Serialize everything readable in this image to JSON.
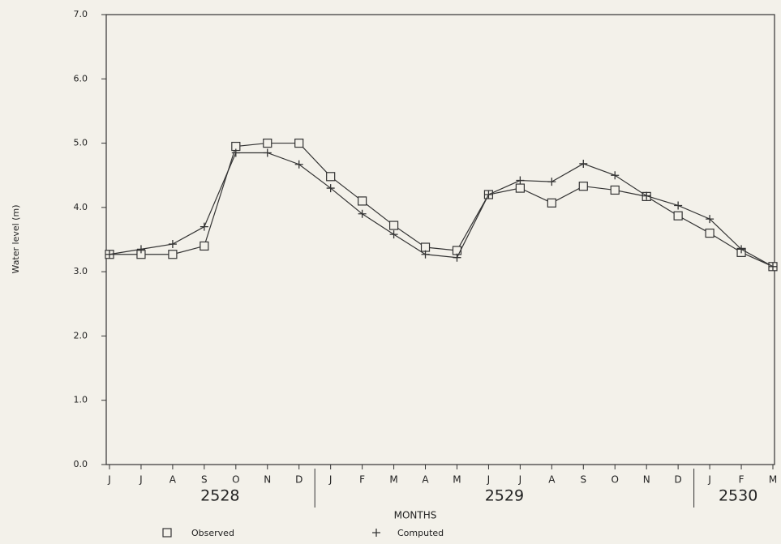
{
  "chart_data": {
    "type": "line",
    "y_label": "Water level (m)",
    "x_label": "MONTHS",
    "categories": [
      "J",
      "J",
      "A",
      "S",
      "O",
      "N",
      "D",
      "J",
      "F",
      "M",
      "A",
      "M",
      "J",
      "J",
      "A",
      "S",
      "O",
      "N",
      "D",
      "J",
      "F",
      "M"
    ],
    "x_groups": [
      "2528",
      "2529",
      "2530"
    ],
    "series": [
      {
        "name": "Observed",
        "color": "#333333",
        "marker": "square",
        "values": [
          3.27,
          3.27,
          3.27,
          3.4,
          4.95,
          5.0,
          5.0,
          4.48,
          4.1,
          3.72,
          3.38,
          3.33,
          4.2,
          4.3,
          4.07,
          4.33,
          4.27,
          4.17,
          3.87,
          3.6,
          3.3,
          3.08
        ]
      },
      {
        "name": "Computed",
        "color": "#333333",
        "marker": "plus",
        "values": [
          3.27,
          3.35,
          3.43,
          3.7,
          4.85,
          4.85,
          4.67,
          4.3,
          3.9,
          3.58,
          3.27,
          3.22,
          4.2,
          4.42,
          4.4,
          4.68,
          4.5,
          4.18,
          4.03,
          3.82,
          3.35,
          3.08
        ]
      }
    ],
    "ylim": [
      0,
      7
    ],
    "yticks": [
      {
        "value": 0,
        "label": "0.0"
      },
      {
        "value": 1,
        "label": "1.0"
      },
      {
        "value": 2,
        "label": "2.0"
      },
      {
        "value": 3,
        "label": "3.0"
      },
      {
        "value": 4,
        "label": "4.0"
      },
      {
        "value": 5,
        "label": "5.0"
      },
      {
        "value": 6,
        "label": "6.0"
      },
      {
        "value": 7,
        "label": "7.0"
      }
    ],
    "grid": false
  }
}
